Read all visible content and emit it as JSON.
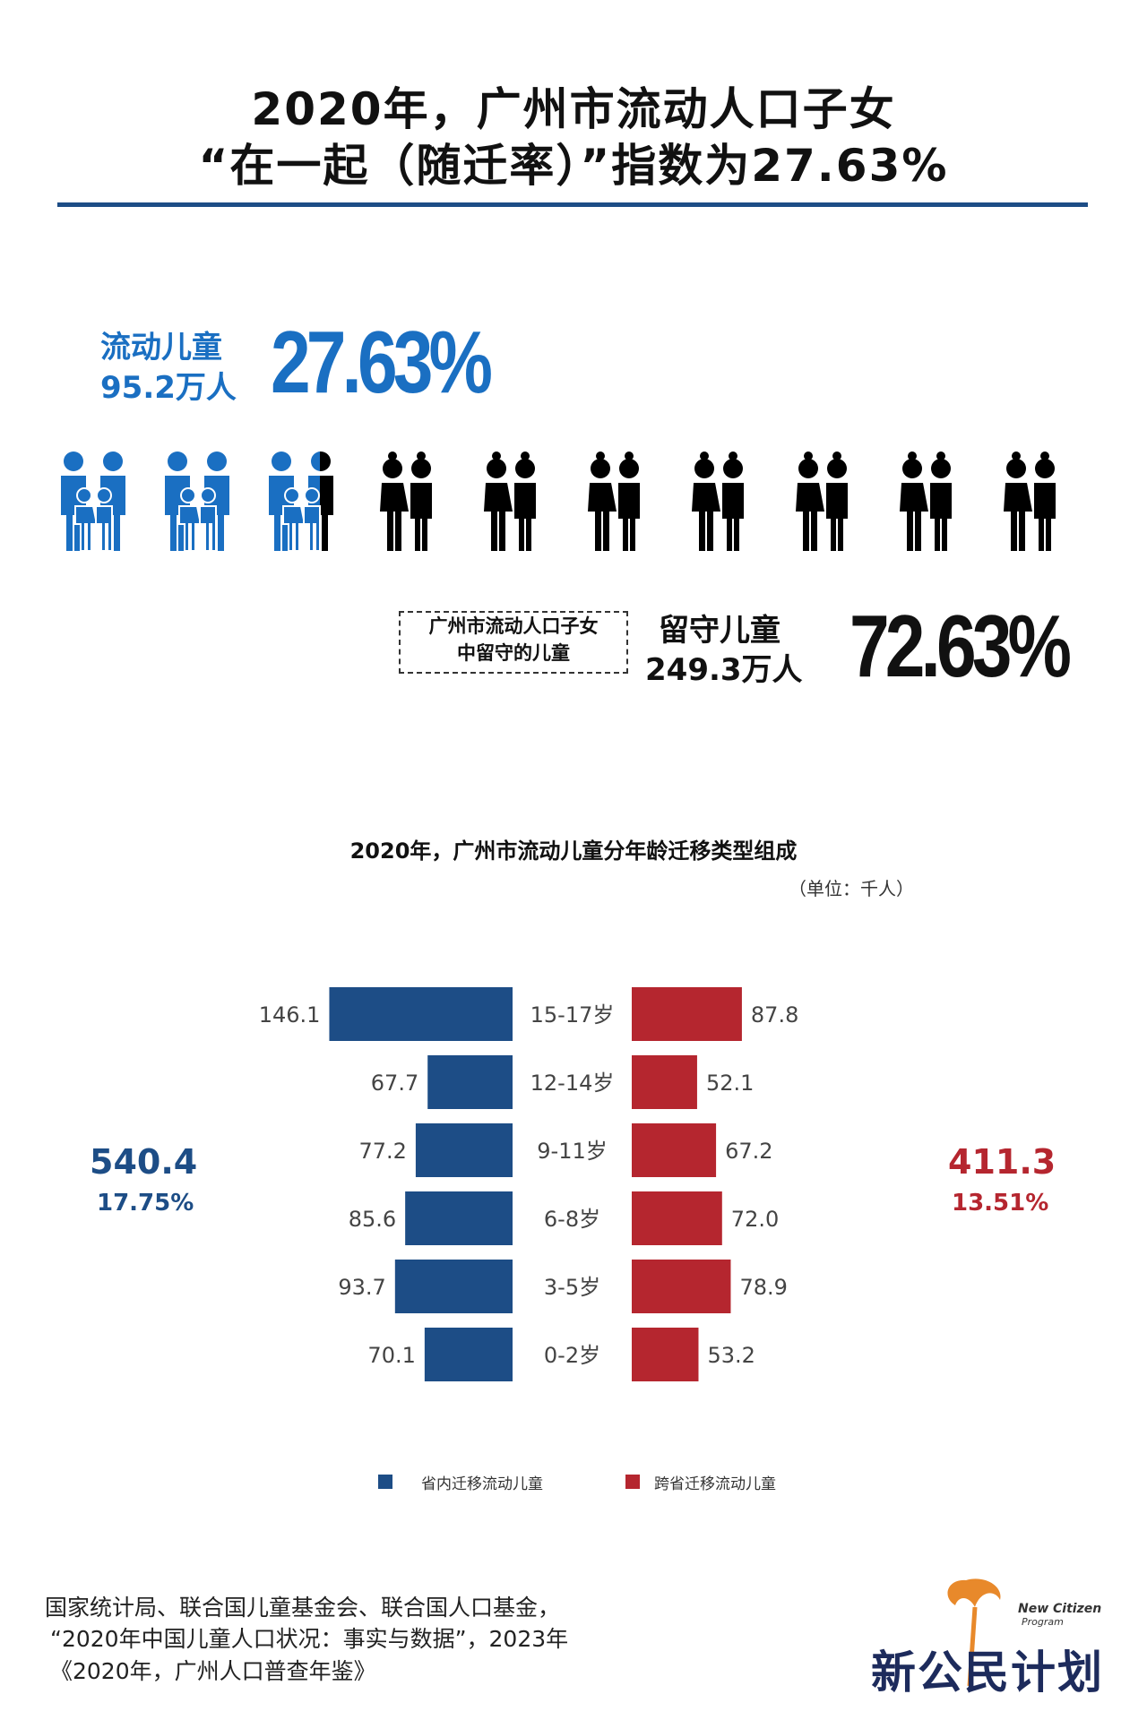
{
  "header": {
    "title_line1": "2020年，广州市流动人口子女",
    "title_line2": "“在一起（随迁率）”指数为27.63%"
  },
  "migrant": {
    "label_line1": "流动儿童",
    "label_line2": "95.2万人",
    "percent": "27.63%"
  },
  "left_behind": {
    "box_line1": "广州市流动人口子女",
    "box_line2": "中留守的儿童",
    "label_line1": "留守儿童",
    "label_line2": "249.3万人",
    "percent": "72.63%"
  },
  "icons": {
    "total_families": 10,
    "migrant_fraction": 0.2763,
    "migrant_color": "#1a6fc2",
    "left_behind_color": "#000000",
    "icon_name": "family-icon"
  },
  "chart_data": {
    "type": "bar",
    "title": "2020年，广州市流动儿童分年龄迁移类型组成",
    "unit": "（单位：千人）",
    "categories": [
      "15-17岁",
      "12-14岁",
      "9-11岁",
      "6-8岁",
      "3-5岁",
      "0-2岁"
    ],
    "series": [
      {
        "name": "省内迁移流动儿童",
        "values": [
          146.1,
          67.7,
          77.2,
          85.6,
          93.7,
          70.1
        ],
        "color": "#1d4d86",
        "side": "left"
      },
      {
        "name": "跨省迁移流动儿童",
        "values": [
          87.8,
          52.1,
          67.2,
          72.0,
          78.9,
          53.2
        ],
        "color": "#b5262f",
        "side": "right"
      }
    ],
    "value_labels": {
      "left": [
        "146.1",
        "67.7",
        "77.2",
        "85.6",
        "93.7",
        "70.1"
      ],
      "right": [
        "87.8",
        "52.1",
        "67.2",
        "72.0",
        "78.9",
        "53.2"
      ]
    },
    "totals": {
      "left_total": "540.4",
      "left_percent": "17.75%",
      "right_total": "411.3",
      "right_percent": "13.51%"
    },
    "legend_position": "bottom"
  },
  "source": {
    "line1": "国家统计局、联合国儿童基金会、联合国人口基金，",
    "line2": "“2020年中国儿童人口状况：事实与数据”，2023年",
    "line3": "《2020年，广州人口普查年鉴》"
  },
  "logo": {
    "name": "新公民计划",
    "english_line1": "New Citizen",
    "english_line2": "Program",
    "accent": "#e8892b"
  }
}
